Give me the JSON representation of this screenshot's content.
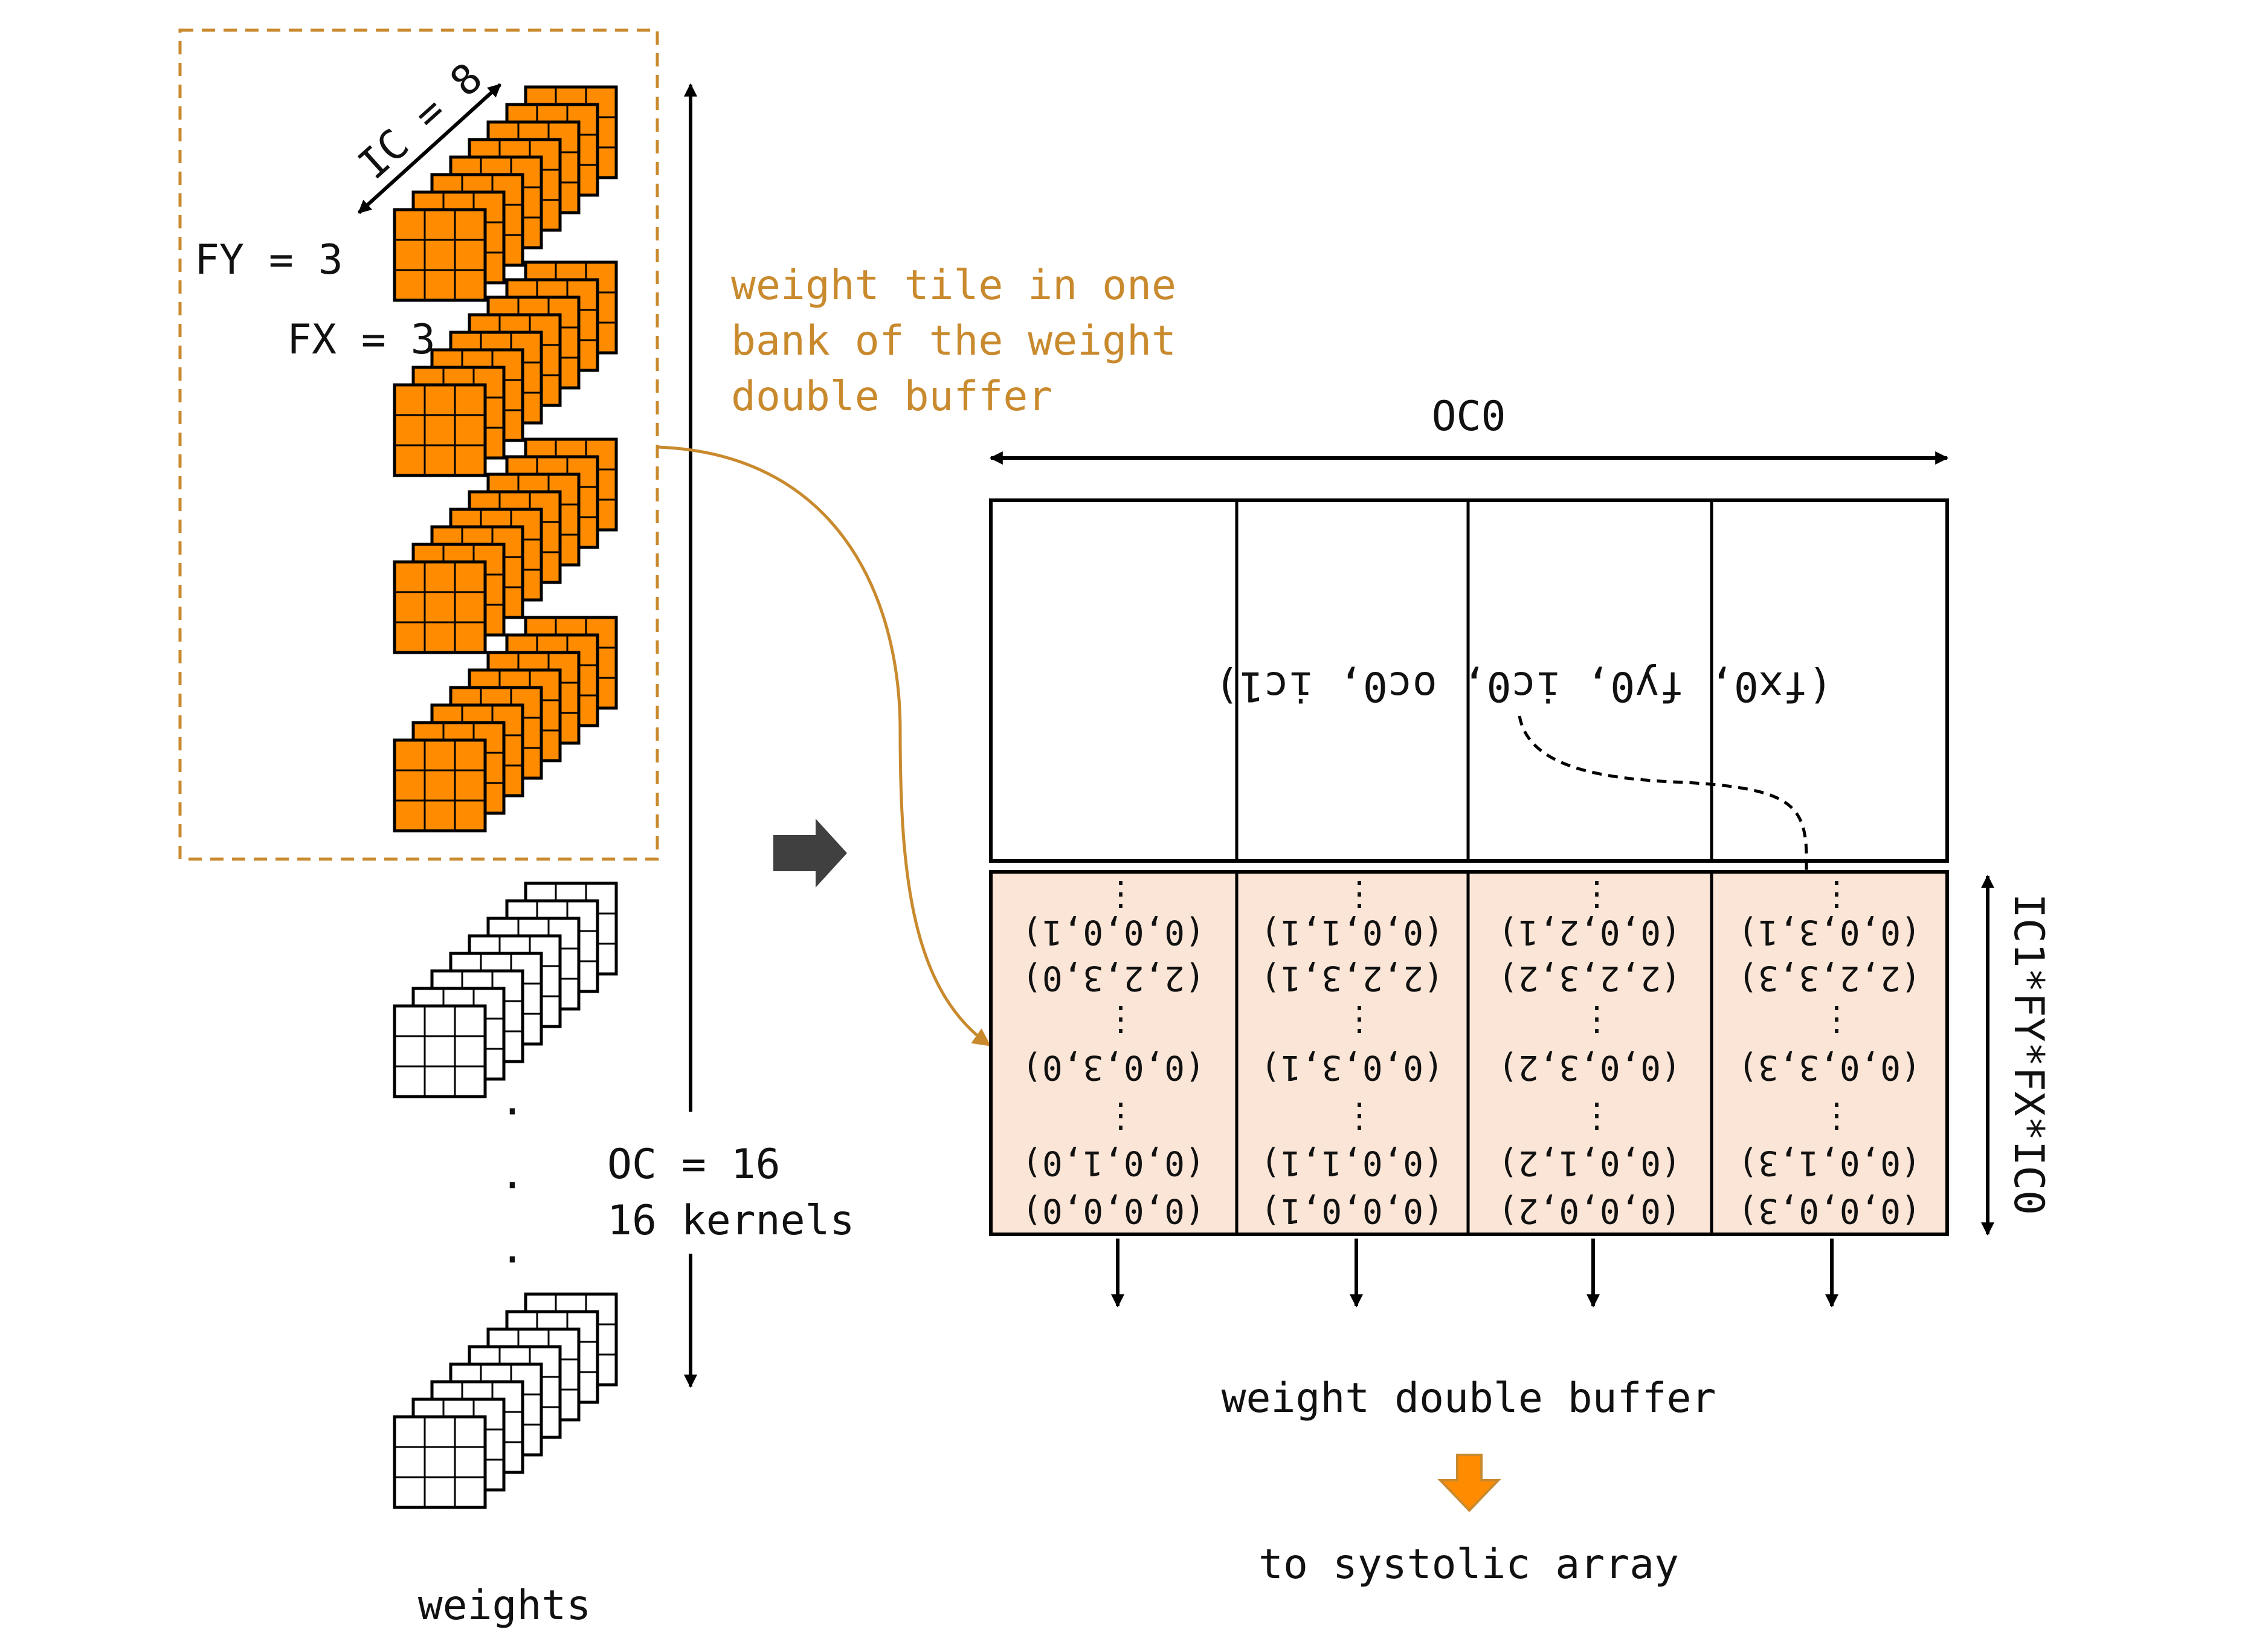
{
  "weights_block": {
    "ic_label": "IC = 8",
    "fy_label": "FY = 3",
    "fx_label": "FX = 3",
    "caption": "weights",
    "ellipsis": "·"
  },
  "oc_axis": {
    "line1": "OC = 16",
    "line2": "16 kernels"
  },
  "tile_note": {
    "line1": "weight tile in one",
    "line2": "bank of the weight",
    "line3": "double buffer"
  },
  "buffer": {
    "oc0_label": "OC0",
    "header_text": "(fx0, fy0, ic0, oc0, ic1)",
    "side_label": "IC1*FY*FX*IC0",
    "caption": "weight double buffer",
    "target": "to systolic array",
    "vdots": "⋮",
    "columns": [
      {
        "rows": [
          "(0,0,0,1)",
          "(2,2,3,0)",
          "(0,0,3,0)",
          "(0,0,1,0)",
          "(0,0,0,0)"
        ]
      },
      {
        "rows": [
          "(0,0,1,1)",
          "(2,2,3,1)",
          "(0,0,3,1)",
          "(0,0,1,1)",
          "(0,0,0,1)"
        ]
      },
      {
        "rows": [
          "(0,0,2,1)",
          "(2,2,3,2)",
          "(0,0,3,2)",
          "(0,0,1,2)",
          "(0,0,0,2)"
        ]
      },
      {
        "rows": [
          "(0,0,3,1)",
          "(2,2,3,3)",
          "(0,0,3,3)",
          "(0,0,1,3)",
          "(0,0,0,3)"
        ]
      }
    ]
  },
  "colors": {
    "orange_fill": "#ff8c00",
    "orange_line": "#c98a2e",
    "buffer_fill": "#fbe5d6",
    "arrow_gray": "#404040"
  }
}
